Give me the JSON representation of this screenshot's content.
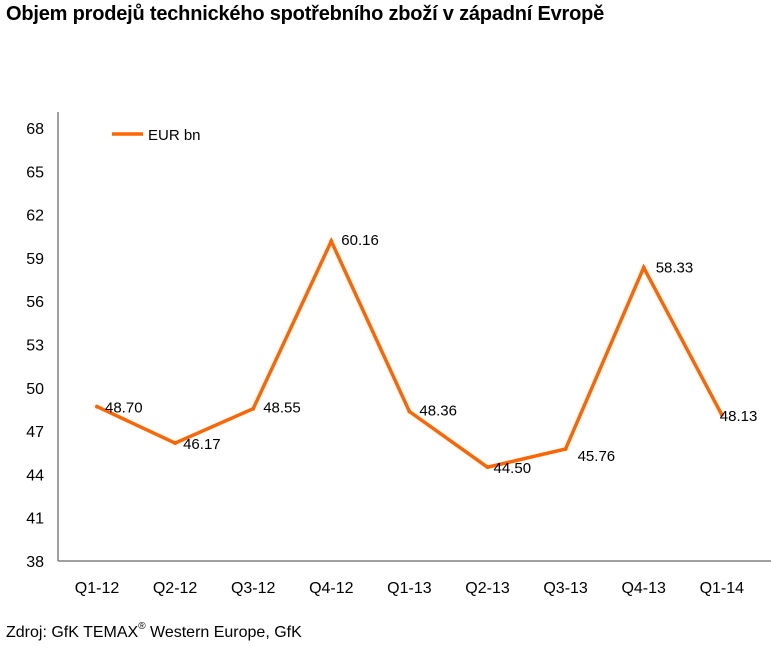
{
  "title": "Objem prodejů technického spotřebního zboží v západní Evropě",
  "source": {
    "prefix": "Zdroj: GfK TEMAX",
    "mark": "®",
    "suffix": " Western Europe, GfK"
  },
  "colors": {
    "series": "#FF6600",
    "axis": "#808080"
  },
  "chart_data": {
    "type": "line",
    "title": "Objem prodejů technického spotřebního zboží v západní Evropě",
    "xlabel": "",
    "ylabel": "",
    "categories": [
      "Q1-12",
      "Q2-12",
      "Q3-12",
      "Q4-12",
      "Q1-13",
      "Q2-13",
      "Q3-13",
      "Q4-13",
      "Q1-14"
    ],
    "series": [
      {
        "name": "EUR bn",
        "values": [
          48.7,
          46.17,
          48.55,
          60.16,
          48.36,
          44.5,
          45.76,
          58.33,
          48.13
        ],
        "labels": [
          "48.70",
          "46.17",
          "48.55",
          "60.16",
          "48.36",
          "44.50",
          "45.76",
          "58.33",
          "48.13"
        ]
      }
    ],
    "ylim": [
      38,
      68
    ],
    "yticks": [
      38,
      41,
      44,
      47,
      50,
      53,
      56,
      59,
      62,
      65,
      68
    ],
    "grid": false,
    "legend": "top-left"
  }
}
